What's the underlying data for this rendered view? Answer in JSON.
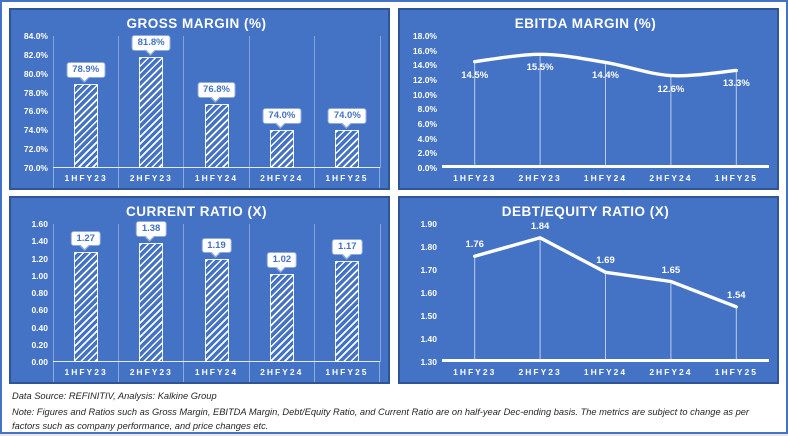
{
  "footer": {
    "source_line": "Data Source: REFINITIV, Analysis: Kalkine Group",
    "note_line": "Note: Figures and Ratios such as Gross Margin, EBITDA Margin, Debt/Equity Ratio, and Current Ratio  are on half-year Dec-ending basis. The metrics are subject to change as per factors such as company performance, and price changes etc."
  },
  "colors": {
    "panel_background": "#4472C4",
    "panel_border": "#2F5597",
    "chart_foreground": "#FFFFFF",
    "callout_text": "#4472C4",
    "callout_border": "#8FAADC",
    "note_text": "#262626"
  },
  "chart_data": [
    {
      "id": "gross-margin",
      "type": "bar",
      "title": "GROSS MARGIN (%)",
      "categories": [
        "1HFY23",
        "2HFY23",
        "1HFY24",
        "2HFY24",
        "1HFY25"
      ],
      "values": [
        78.9,
        81.8,
        76.8,
        74.0,
        74.0
      ],
      "labels": [
        "78.9%",
        "81.8%",
        "76.8%",
        "74.0%",
        "74.0%"
      ],
      "ylim": [
        70,
        84
      ],
      "yticks": [
        "84.0%",
        "82.0%",
        "80.0%",
        "78.0%",
        "76.0%",
        "74.0%",
        "72.0%",
        "70.0%"
      ],
      "grid": "vertical-category",
      "label_style": "callout",
      "legend": "none"
    },
    {
      "id": "ebitda-margin",
      "type": "line",
      "title": "EBITDA MARGIN (%)",
      "categories": [
        "1HFY23",
        "2HFY23",
        "1HFY24",
        "2HFY24",
        "1HFY25"
      ],
      "values": [
        14.5,
        15.5,
        14.4,
        12.6,
        13.3
      ],
      "labels": [
        "14.5%",
        "15.5%",
        "14.4%",
        "12.6%",
        "13.3%"
      ],
      "ylim": [
        0,
        18
      ],
      "yticks": [
        "18.0%",
        "16.0%",
        "14.0%",
        "12.0%",
        "10.0%",
        "8.0%",
        "6.0%",
        "4.0%",
        "2.0%",
        "0.0%"
      ],
      "smooth": true,
      "drop_lines": true,
      "label_position": "below",
      "legend": "none"
    },
    {
      "id": "current-ratio",
      "type": "bar",
      "title": "CURRENT RATIO (X)",
      "categories": [
        "1HFY23",
        "2HFY23",
        "1HFY24",
        "2HFY24",
        "1HFY25"
      ],
      "values": [
        1.27,
        1.38,
        1.19,
        1.02,
        1.17
      ],
      "labels": [
        "1.27",
        "1.38",
        "1.19",
        "1.02",
        "1.17"
      ],
      "ylim": [
        0,
        1.6
      ],
      "yticks": [
        "1.60",
        "1.40",
        "1.20",
        "1.00",
        "0.80",
        "0.60",
        "0.40",
        "0.20",
        "0.00"
      ],
      "grid": "vertical-category",
      "label_style": "callout",
      "legend": "none"
    },
    {
      "id": "debt-equity-ratio",
      "type": "line",
      "title": "DEBT/EQUITY RATIO (X)",
      "categories": [
        "1HFY23",
        "2HFY23",
        "1HFY24",
        "2HFY24",
        "1HFY25"
      ],
      "values": [
        1.76,
        1.84,
        1.69,
        1.65,
        1.54
      ],
      "labels": [
        "1.76",
        "1.84",
        "1.69",
        "1.65",
        "1.54"
      ],
      "ylim": [
        1.3,
        1.9
      ],
      "yticks": [
        "1.90",
        "1.80",
        "1.70",
        "1.60",
        "1.50",
        "1.40",
        "1.30"
      ],
      "smooth": false,
      "drop_lines": true,
      "label_position": "above",
      "legend": "none"
    }
  ]
}
